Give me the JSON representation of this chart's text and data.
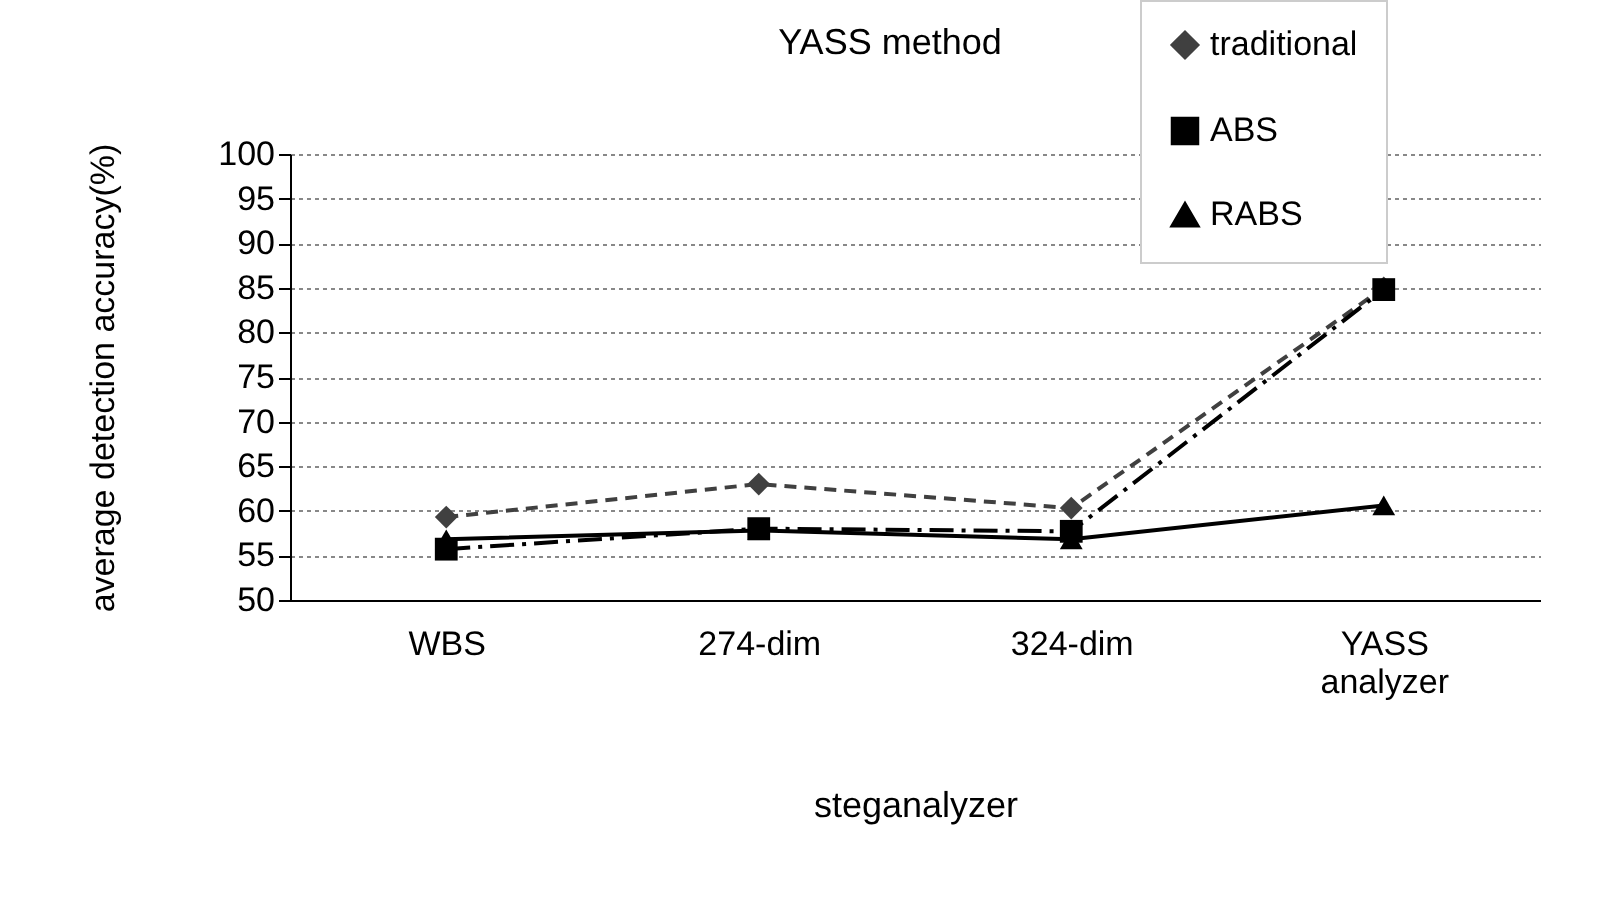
{
  "chart_data": {
    "type": "line",
    "title": "YASS method",
    "xlabel": "steganalyzer",
    "ylabel": "average detection accuracy(%)",
    "categories": [
      "WBS",
      "274-dim",
      "324-dim",
      "YASS analyzer"
    ],
    "series": [
      {
        "name": "traditional",
        "color": "#404040",
        "marker": "diamond",
        "line_style": "dashed",
        "values": [
          59.3,
          63,
          60.3,
          85
        ]
      },
      {
        "name": "ABS",
        "color": "#000000",
        "marker": "square",
        "line_style": "dashdot",
        "values": [
          55.7,
          58,
          57.7,
          84.8
        ]
      },
      {
        "name": "RABS",
        "color": "#000000",
        "marker": "triangle",
        "line_style": "solid",
        "values": [
          56.8,
          57.8,
          56.8,
          60.6
        ]
      }
    ],
    "ylim": [
      50,
      100
    ],
    "yticks": [
      50,
      55,
      60,
      65,
      70,
      75,
      80,
      85,
      90,
      95,
      100
    ],
    "grid": "y",
    "legend": "top right"
  }
}
